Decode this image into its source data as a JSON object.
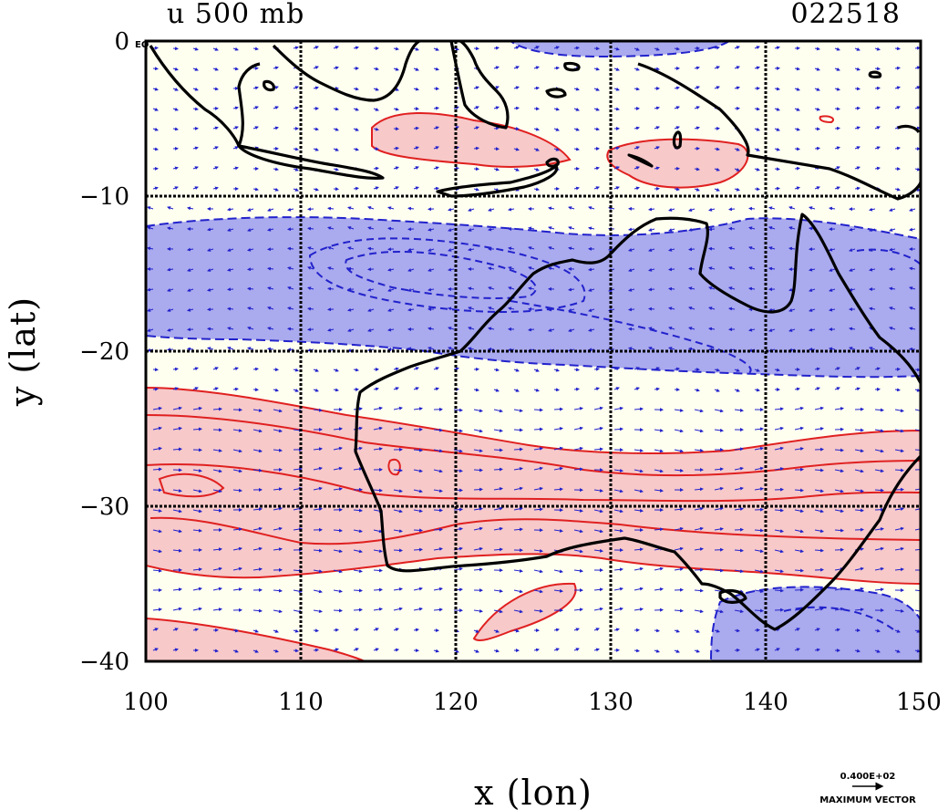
{
  "plot": {
    "title_left": "u 500 mb",
    "title_right": "022518",
    "xlabel": "x (lon)",
    "ylabel": "y (lat)",
    "corner_label": "EQ",
    "legend_value": "0.400E+02",
    "legend_caption": "MAXIMUM VECTOR"
  },
  "axes": {
    "x_ticks": [
      "100",
      "110",
      "120",
      "130",
      "140",
      "150"
    ],
    "y_ticks": [
      "0",
      "−10",
      "−20",
      "−30",
      "−40"
    ],
    "x_range": [
      100,
      150
    ],
    "y_range": [
      -40,
      0
    ],
    "grid": true
  },
  "colors": {
    "positive_fill": "#f7c9c9",
    "positive_line": "#e02020",
    "negative_fill": "#aaaaee",
    "negative_line": "#2222cc",
    "background": "#fffff0",
    "coast": "#000000",
    "vector": "#2222cc"
  }
}
